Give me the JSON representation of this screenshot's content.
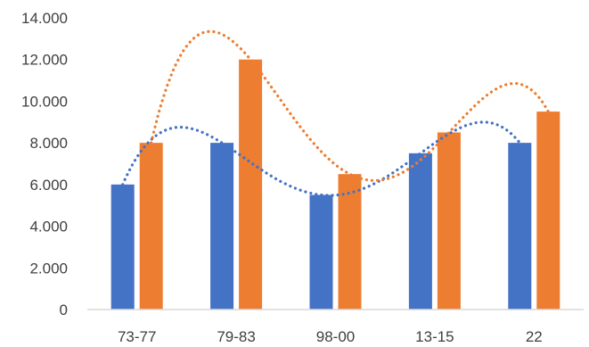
{
  "chart_data": {
    "type": "bar",
    "categories": [
      "73-77",
      "79-83",
      "98-00",
      "13-15",
      "22"
    ],
    "series": [
      {
        "values": [
          6000,
          8000,
          5500,
          7500,
          8000
        ],
        "color": "#4472C4"
      },
      {
        "values": [
          8000,
          12000,
          6500,
          8500,
          9500
        ],
        "color": "#ED7D31"
      }
    ],
    "trendlines": [
      {
        "series_index": 0,
        "style": "dotted",
        "color": "#4472C4"
      },
      {
        "series_index": 1,
        "style": "dotted",
        "color": "#ED7D31"
      }
    ],
    "ylim": [
      0,
      14000
    ],
    "y_ticks": [
      {
        "value": 0,
        "label": "0"
      },
      {
        "value": 2000,
        "label": "2.000"
      },
      {
        "value": 4000,
        "label": "4.000"
      },
      {
        "value": 6000,
        "label": "6.000"
      },
      {
        "value": 8000,
        "label": "8.000"
      },
      {
        "value": 10000,
        "label": "10.000"
      },
      {
        "value": 12000,
        "label": "12.000"
      },
      {
        "value": 14000,
        "label": "14.000"
      }
    ],
    "grid": false,
    "legend": "none",
    "title": "",
    "xlabel": "",
    "ylabel": ""
  }
}
